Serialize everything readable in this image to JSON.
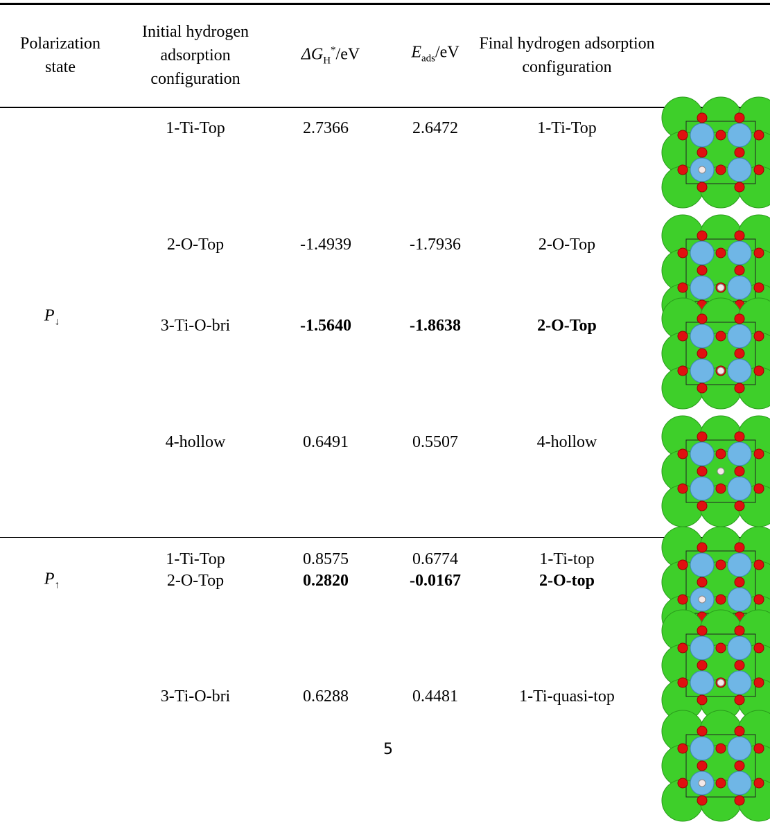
{
  "table": {
    "header": {
      "polarization": [
        "Polarization",
        "state"
      ],
      "initial": [
        "Initial hydrogen",
        "adsorption",
        "configuration"
      ],
      "dg": {
        "symbol": "ΔG",
        "sub": "H",
        "sup": "*",
        "unit": "/eV"
      },
      "eads": {
        "symbol": "E",
        "sub": "ads",
        "unit": "/eV"
      },
      "final": [
        "Final hydrogen adsorption",
        "configuration"
      ]
    },
    "groups": [
      {
        "state": {
          "symbol": "P",
          "sub": "↓"
        },
        "rows": [
          {
            "initial": "1-Ti-Top",
            "dg": "2.7366",
            "eads": "2.6472",
            "final": "1-Ti-Top",
            "bold": false
          },
          {
            "initial": "2-O-Top",
            "dg": "-1.4939",
            "eads": "-1.7936",
            "final": "2-O-Top",
            "bold": false
          },
          {
            "initial": "3-Ti-O-bri",
            "dg": "-1.5640",
            "eads": "-1.8638",
            "final": "2-O-Top",
            "bold": true
          },
          {
            "initial": "4-hollow",
            "dg": "0.6491",
            "eads": "0.5507",
            "final": "4-hollow",
            "bold": false
          }
        ]
      },
      {
        "state": {
          "symbol": "P",
          "sub": "↑"
        },
        "rows": [
          {
            "initial": "1-Ti-Top",
            "dg": "0.8575",
            "eads": "0.6774",
            "final": "1-Ti-top",
            "bold": false
          },
          {
            "initial": "2-O-Top",
            "dg": "0.2820",
            "eads": "-0.0167",
            "final": "2-O-top",
            "bold": true
          },
          {
            "initial": "3-Ti-O-bri",
            "dg": "0.6288",
            "eads": "0.4481",
            "final": "1-Ti-quasi-top",
            "bold": false
          }
        ]
      }
    ]
  },
  "page_number": "5"
}
